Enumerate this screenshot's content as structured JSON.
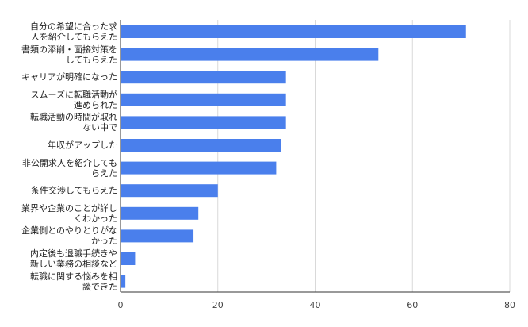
{
  "chart_data": {
    "type": "bar",
    "orientation": "horizontal",
    "title": "",
    "xlabel": "",
    "ylabel": "",
    "categories": [
      "自分の希望に合った求\n人を紹介してもらえた",
      "書類の添削・面接対策を\nしてもらえた",
      "キャリアが明確になった",
      "スムーズに転職活動が\n進められた",
      "転職活動の時間が取れ\nない中で",
      "年収がアップした",
      "非公開求人を紹介しても\nらえた",
      "条件交渉してもらえた",
      "業界や企業のことが詳し\nくわかった",
      "企業側とのやりとりがな\nかった",
      "内定後も退職手続きや\n新しい業務の相談など",
      "転職に関する悩みを相\n談できた"
    ],
    "values": [
      71,
      53,
      34,
      34,
      34,
      33,
      32,
      20,
      16,
      15,
      3,
      1
    ],
    "xlim": [
      0,
      80
    ],
    "xticks": [
      0,
      20,
      40,
      60,
      80
    ],
    "xtick_labels": [
      "0",
      "20",
      "40",
      "60",
      "80"
    ],
    "grid": "vertical",
    "legend": "none",
    "colors": {
      "bar": "#4a7fec",
      "grid": "#d9d9d9",
      "axis": "#333333"
    }
  }
}
